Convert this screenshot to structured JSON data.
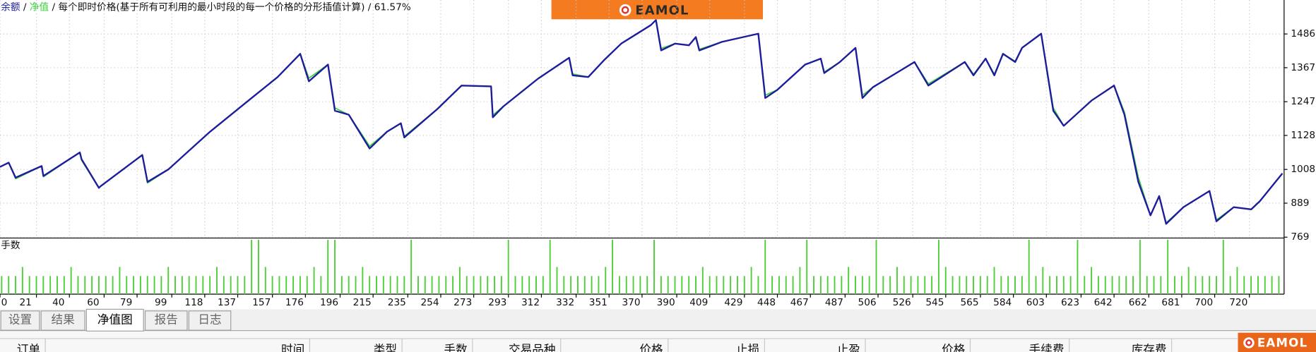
{
  "chart_data": {
    "type": "line",
    "title": "每个即时价格(基于所有可利用的最小时段的每一个价格的分形插值计算)",
    "subtitle": "61.57%",
    "separator": "/",
    "x": [
      0,
      5,
      9,
      24,
      25,
      46,
      47,
      57,
      58,
      82,
      85,
      97,
      121,
      145,
      160,
      173,
      178,
      189,
      193,
      201,
      213,
      223,
      231,
      233,
      252,
      266,
      283,
      284,
      290,
      310,
      328,
      330,
      339,
      348,
      358,
      375,
      378,
      381,
      389,
      397,
      401,
      403,
      416,
      437,
      441,
      448,
      464,
      473,
      475,
      484,
      493,
      497,
      503,
      527,
      535,
      556,
      561,
      568,
      573,
      578,
      585,
      589,
      600,
      607,
      613,
      629,
      642,
      648,
      656,
      663,
      668,
      672,
      682,
      697,
      701,
      711,
      721,
      726,
      739
    ],
    "series": [
      {
        "name": "余额",
        "color": "#1c1c9c",
        "values": [
          1017,
          1032,
          979,
          1020,
          985,
          1068,
          1044,
          943,
          949,
          1059,
          964,
          1008,
          1141,
          1260,
          1334,
          1416,
          1319,
          1378,
          1215,
          1201,
          1082,
          1141,
          1171,
          1121,
          1221,
          1304,
          1301,
          1192,
          1230,
          1328,
          1402,
          1340,
          1334,
          1393,
          1452,
          1517,
          1535,
          1428,
          1452,
          1446,
          1475,
          1428,
          1458,
          1487,
          1260,
          1289,
          1378,
          1399,
          1348,
          1387,
          1437,
          1260,
          1298,
          1387,
          1304,
          1387,
          1340,
          1399,
          1340,
          1416,
          1387,
          1437,
          1487,
          1215,
          1162,
          1251,
          1304,
          1201,
          964,
          846,
          914,
          816,
          875,
          932,
          825,
          875,
          867,
          896,
          994
        ]
      },
      {
        "name": "净值",
        "color": "#3ccf3c",
        "values": [
          1017,
          1032,
          975,
          1020,
          982,
          1068,
          1040,
          943,
          949,
          1059,
          960,
          1008,
          1141,
          1260,
          1334,
          1416,
          1330,
          1378,
          1225,
          1201,
          1090,
          1141,
          1171,
          1125,
          1221,
          1304,
          1301,
          1200,
          1230,
          1328,
          1402,
          1345,
          1334,
          1393,
          1452,
          1517,
          1535,
          1435,
          1452,
          1446,
          1475,
          1432,
          1458,
          1487,
          1270,
          1289,
          1378,
          1399,
          1352,
          1387,
          1437,
          1270,
          1298,
          1387,
          1310,
          1387,
          1344,
          1399,
          1344,
          1416,
          1390,
          1437,
          1487,
          1225,
          1162,
          1251,
          1304,
          1210,
          980,
          846,
          914,
          820,
          875,
          932,
          830,
          875,
          867,
          896,
          994
        ]
      }
    ],
    "xlim": [
      0,
      740
    ],
    "xticks": [
      0,
      21,
      40,
      60,
      79,
      99,
      118,
      137,
      157,
      176,
      196,
      215,
      235,
      254,
      273,
      293,
      312,
      332,
      351,
      370,
      390,
      409,
      429,
      448,
      467,
      487,
      506,
      526,
      545,
      565,
      584,
      603,
      623,
      642,
      662,
      681,
      700,
      720
    ],
    "ylim": [
      769,
      1594
    ],
    "yticks": [
      769,
      889,
      1008,
      1128,
      1247,
      1367,
      1486
    ],
    "grid": true,
    "lots": {
      "label": "手数",
      "color": "#4fce3a",
      "ylim": [
        0,
        0.06
      ],
      "x": [
        0,
        4,
        8,
        12,
        16,
        20,
        24,
        28,
        32,
        36,
        40,
        44,
        48,
        52,
        56,
        60,
        64,
        68,
        72,
        76,
        80,
        84,
        88,
        92,
        96,
        100,
        104,
        108,
        112,
        116,
        120,
        124,
        128,
        132,
        136,
        140,
        144,
        148,
        152,
        156,
        160,
        164,
        168,
        172,
        176,
        180,
        184,
        188,
        192,
        196,
        200,
        204,
        208,
        212,
        216,
        220,
        224,
        228,
        232,
        236,
        240,
        244,
        248,
        252,
        256,
        260,
        264,
        268,
        272,
        276,
        280,
        284,
        288,
        292,
        296,
        300,
        304,
        308,
        312,
        316,
        320,
        324,
        328,
        332,
        336,
        340,
        344,
        348,
        352,
        356,
        360,
        364,
        368,
        372,
        376,
        380,
        384,
        388,
        392,
        396,
        400,
        404,
        408,
        412,
        416,
        420,
        424,
        428,
        432,
        436,
        440,
        444,
        448,
        452,
        456,
        460,
        464,
        468,
        472,
        476,
        480,
        484,
        488,
        492,
        496,
        500,
        504,
        508,
        512,
        516,
        520,
        524,
        528,
        532,
        536,
        540,
        544,
        548,
        552,
        556,
        560,
        564,
        568,
        572,
        576,
        580,
        584,
        588,
        592,
        596,
        600,
        604,
        608,
        612,
        616,
        620,
        624,
        628,
        632,
        636,
        640,
        644,
        648,
        652,
        656,
        660,
        664,
        668,
        672,
        676,
        680,
        684,
        688,
        692,
        696,
        700,
        704,
        708,
        712,
        716,
        720,
        724,
        728,
        732,
        736
      ],
      "values": [
        0.02,
        0.02,
        0.02,
        0.03,
        0.02,
        0.02,
        0.02,
        0.02,
        0.02,
        0.02,
        0.03,
        0.02,
        0.02,
        0.02,
        0.02,
        0.02,
        0.02,
        0.03,
        0.02,
        0.02,
        0.02,
        0.02,
        0.02,
        0.02,
        0.03,
        0.02,
        0.02,
        0.02,
        0.02,
        0.02,
        0.02,
        0.03,
        0.02,
        0.02,
        0.02,
        0.02,
        0.06,
        0.06,
        0.03,
        0.02,
        0.02,
        0.02,
        0.02,
        0.02,
        0.02,
        0.03,
        0.02,
        0.06,
        0.06,
        0.02,
        0.02,
        0.02,
        0.03,
        0.02,
        0.02,
        0.02,
        0.02,
        0.02,
        0.02,
        0.06,
        0.02,
        0.02,
        0.02,
        0.02,
        0.02,
        0.02,
        0.03,
        0.02,
        0.02,
        0.02,
        0.02,
        0.02,
        0.02,
        0.06,
        0.02,
        0.02,
        0.02,
        0.02,
        0.02,
        0.06,
        0.03,
        0.02,
        0.02,
        0.02,
        0.02,
        0.02,
        0.02,
        0.03,
        0.06,
        0.02,
        0.02,
        0.02,
        0.02,
        0.02,
        0.06,
        0.02,
        0.02,
        0.02,
        0.02,
        0.02,
        0.02,
        0.03,
        0.02,
        0.02,
        0.02,
        0.02,
        0.02,
        0.02,
        0.03,
        0.02,
        0.06,
        0.02,
        0.02,
        0.02,
        0.02,
        0.03,
        0.06,
        0.02,
        0.02,
        0.02,
        0.02,
        0.02,
        0.03,
        0.02,
        0.02,
        0.02,
        0.06,
        0.02,
        0.02,
        0.03,
        0.02,
        0.02,
        0.02,
        0.02,
        0.02,
        0.06,
        0.03,
        0.02,
        0.02,
        0.02,
        0.02,
        0.02,
        0.02,
        0.03,
        0.02,
        0.02,
        0.02,
        0.02,
        0.06,
        0.02,
        0.03,
        0.02,
        0.02,
        0.02,
        0.02,
        0.06,
        0.02,
        0.03,
        0.02,
        0.02,
        0.02,
        0.02,
        0.02,
        0.02,
        0.06,
        0.02,
        0.02,
        0.02,
        0.06,
        0.02,
        0.02,
        0.03,
        0.02,
        0.02,
        0.02,
        0.02,
        0.06,
        0.02,
        0.03,
        0.02,
        0.02,
        0.02,
        0.02,
        0.02,
        0.02
      ]
    }
  },
  "logo": "EAMOL",
  "tabs": [
    "设置",
    "结果",
    "净值图",
    "报告",
    "日志"
  ],
  "active_tab_index": 2,
  "table": {
    "columns": [
      "订单",
      "时间",
      "类型",
      "手数",
      "交易品种",
      "价格",
      "止损",
      "止盈",
      "价格",
      "手续费",
      "库存费"
    ]
  }
}
